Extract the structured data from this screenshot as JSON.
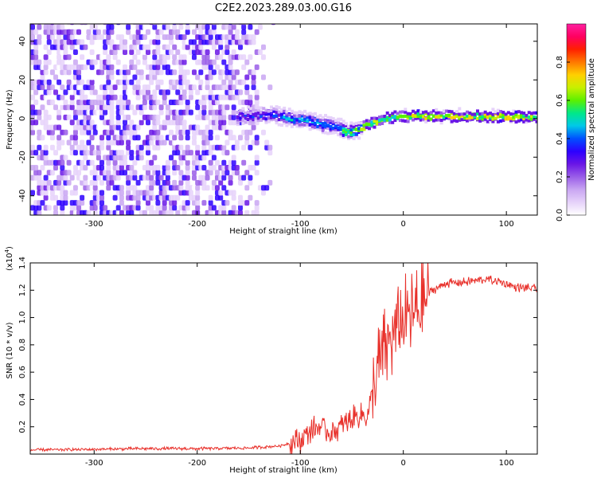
{
  "figure": {
    "title": "C2E2.2023.289.03.00.G16"
  },
  "chart_data": [
    {
      "type": "heatmap",
      "xlabel": "Height of straight line (km)",
      "ylabel": "Frequency (Hz)",
      "xlim": [
        -362,
        130
      ],
      "ylim": [
        -50,
        49
      ],
      "xticks": [
        -300,
        -200,
        -100,
        0,
        100
      ],
      "yticks": [
        -40,
        -20,
        0,
        20,
        40
      ],
      "colorbar": {
        "label": "Normalized spectral amplitude",
        "range": [
          0,
          1
        ],
        "ticks": [
          0.0,
          0.2,
          0.4,
          0.6,
          0.8
        ],
        "tick_labels": [
          "0.0",
          "0.2",
          "0.4",
          "0.6",
          "0.8"
        ],
        "colormap": [
          "#ffffff",
          "#e6d2fa",
          "#c9a6f2",
          "#9a5ee8",
          "#6a16e6",
          "#2d00ff",
          "#0050ff",
          "#00c8e8",
          "#00e88a",
          "#5cf000",
          "#c8f000",
          "#ffd000",
          "#ff7800",
          "#ff2000",
          "#ff0060",
          "#ff20a0"
        ]
      },
      "trace_ridge": [
        [
          -160,
          2
        ],
        [
          -130,
          3
        ],
        [
          -110,
          1
        ],
        [
          -95,
          0
        ],
        [
          -80,
          -2
        ],
        [
          -65,
          -3
        ],
        [
          -55,
          -6
        ],
        [
          -45,
          -5
        ],
        [
          -35,
          -2
        ],
        [
          -20,
          1
        ],
        [
          -5,
          2
        ],
        [
          10,
          2
        ],
        [
          40,
          2
        ],
        [
          80,
          2
        ],
        [
          130,
          1.5
        ]
      ]
    },
    {
      "type": "line",
      "xlabel": "Height of straight line (km)",
      "ylabel": "SNR (10 * v/v)",
      "y_scale_label": "(x10",
      "y_scale_exponent": "4",
      "y_scale_suffix": ")",
      "xlim": [
        -362,
        130
      ],
      "ylim": [
        0,
        1.4
      ],
      "xticks": [
        -300,
        -200,
        -100,
        0,
        100
      ],
      "yticks": [
        0.2,
        0.4,
        0.6,
        0.8,
        1.0,
        1.2,
        1.4
      ],
      "ytick_labels": [
        "0.2",
        "0.4",
        "0.6",
        "0.8",
        "1.0",
        "1.2",
        "1.4"
      ],
      "series_color": "#e8302a",
      "trend": [
        [
          -362,
          0.03
        ],
        [
          -300,
          0.035
        ],
        [
          -250,
          0.04
        ],
        [
          -200,
          0.04
        ],
        [
          -150,
          0.045
        ],
        [
          -120,
          0.06
        ],
        [
          -100,
          0.1
        ],
        [
          -90,
          0.18
        ],
        [
          -80,
          0.2
        ],
        [
          -70,
          0.15
        ],
        [
          -60,
          0.2
        ],
        [
          -45,
          0.28
        ],
        [
          -35,
          0.28
        ],
        [
          -25,
          0.6
        ],
        [
          -15,
          0.8
        ],
        [
          -5,
          0.95
        ],
        [
          5,
          1.0
        ],
        [
          15,
          1.05
        ],
        [
          25,
          1.18
        ],
        [
          40,
          1.25
        ],
        [
          60,
          1.26
        ],
        [
          80,
          1.28
        ],
        [
          95,
          1.26
        ],
        [
          110,
          1.22
        ],
        [
          130,
          1.21
        ]
      ]
    }
  ]
}
